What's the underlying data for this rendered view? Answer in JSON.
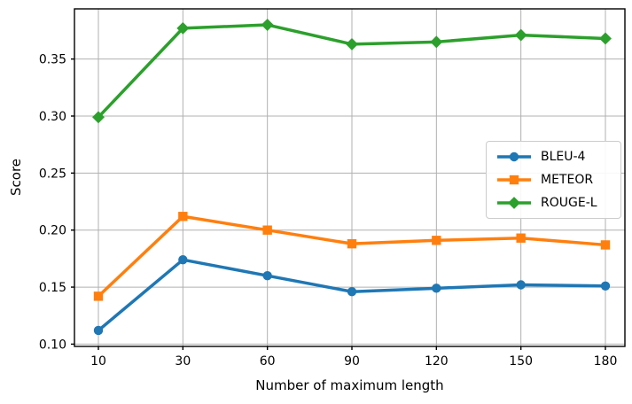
{
  "figure": {
    "background": "#ffffff"
  },
  "chart_data": {
    "type": "line",
    "title": "",
    "xlabel": "Number of maximum length",
    "ylabel": "Score",
    "categories": [
      "10",
      "30",
      "60",
      "90",
      "120",
      "150",
      "180"
    ],
    "x_spacing": "even",
    "yticks": [
      "0.10",
      "0.15",
      "0.20",
      "0.25",
      "0.30",
      "0.35"
    ],
    "ylim": [
      0.098,
      0.394
    ],
    "grid": true,
    "grid_color": "#b0b0b0",
    "spine_color": "#000000",
    "text_color": "#000000",
    "legend_position": "center right",
    "series": [
      {
        "name": "BLEU-4",
        "color": "#1f77b4",
        "marker": "circle",
        "values": [
          0.112,
          0.174,
          0.16,
          0.146,
          0.149,
          0.152,
          0.151
        ]
      },
      {
        "name": "METEOR",
        "color": "#ff7f0e",
        "marker": "square",
        "values": [
          0.142,
          0.212,
          0.2,
          0.188,
          0.191,
          0.193,
          0.187
        ]
      },
      {
        "name": "ROUGE-L",
        "color": "#2ca02c",
        "marker": "diamond",
        "values": [
          0.299,
          0.377,
          0.38,
          0.363,
          0.365,
          0.371,
          0.368
        ]
      }
    ]
  }
}
